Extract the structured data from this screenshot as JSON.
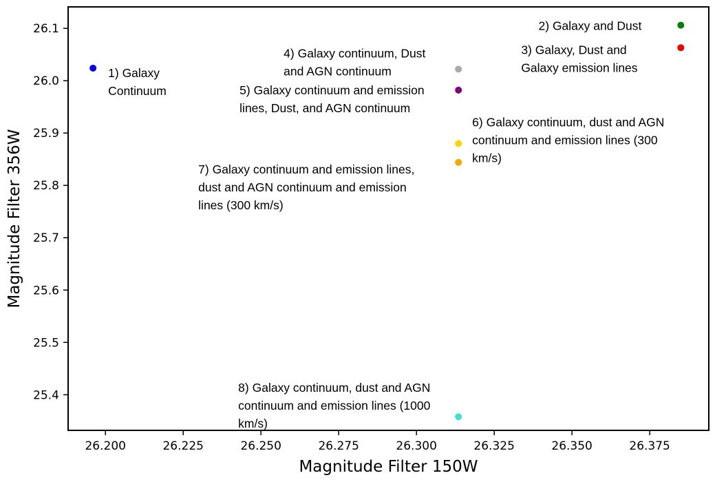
{
  "chart_data": {
    "type": "scatter",
    "xlabel": "Magnitude Filter 150W",
    "ylabel": "Magnitude Filter 356W",
    "xlim": [
      26.188,
      26.394
    ],
    "ylim": [
      25.332,
      26.141
    ],
    "xticks": [
      {
        "value": 26.2,
        "label": "26.200"
      },
      {
        "value": 26.225,
        "label": "26.225"
      },
      {
        "value": 26.25,
        "label": "26.250"
      },
      {
        "value": 26.275,
        "label": "26.275"
      },
      {
        "value": 26.3,
        "label": "26.300"
      },
      {
        "value": 26.325,
        "label": "26.325"
      },
      {
        "value": 26.35,
        "label": "26.350"
      },
      {
        "value": 26.375,
        "label": "26.375"
      }
    ],
    "yticks": [
      {
        "value": 25.4,
        "label": "25.4"
      },
      {
        "value": 25.5,
        "label": "25.5"
      },
      {
        "value": 25.6,
        "label": "25.6"
      },
      {
        "value": 25.7,
        "label": "25.7"
      },
      {
        "value": 25.8,
        "label": "25.8"
      },
      {
        "value": 25.9,
        "label": "25.9"
      },
      {
        "value": 26.0,
        "label": "26.0"
      },
      {
        "value": 26.1,
        "label": "26.1"
      }
    ],
    "grid": false,
    "points": [
      {
        "x": 26.196,
        "y": 26.024,
        "color": "#0000ee",
        "lines": [
          "1) Galaxy",
          "Continuum"
        ],
        "anchor": "start"
      },
      {
        "x": 26.385,
        "y": 26.106,
        "color": "#008000",
        "lines": [
          "2) Galaxy and Dust"
        ],
        "anchor": "end"
      },
      {
        "x": 26.385,
        "y": 26.063,
        "color": "#ee0000",
        "lines": [
          "3) Galaxy, Dust and",
          "Galaxy emission lines"
        ],
        "anchor": "start"
      },
      {
        "x": 26.3135,
        "y": 26.022,
        "color": "#aaaaaa",
        "lines": [
          "4) Galaxy continuum, Dust",
          "and AGN continuum"
        ],
        "anchor": "start"
      },
      {
        "x": 26.3135,
        "y": 25.982,
        "color": "#800080",
        "lines": [
          "5) Galaxy continuum and emission",
          "lines, Dust, and AGN continuum"
        ],
        "anchor": "start"
      },
      {
        "x": 26.3135,
        "y": 25.88,
        "color": "#ffd700",
        "lines": [
          "6) Galaxy continuum, dust and AGN",
          "continuum and emission lines (300",
          "km/s)"
        ],
        "anchor": "start"
      },
      {
        "x": 26.3135,
        "y": 25.844,
        "color": "#ffa500",
        "lines": [
          "7) Galaxy continuum and emission lines,",
          "dust and AGN continuum and emission",
          "lines (300 km/s)"
        ],
        "anchor": "start"
      },
      {
        "x": 26.3135,
        "y": 25.358,
        "color": "#40e0d0",
        "lines": [
          "8) Galaxy continuum, dust and AGN",
          "continuum and emission lines (1000",
          "km/s)"
        ],
        "anchor": "start"
      }
    ]
  }
}
